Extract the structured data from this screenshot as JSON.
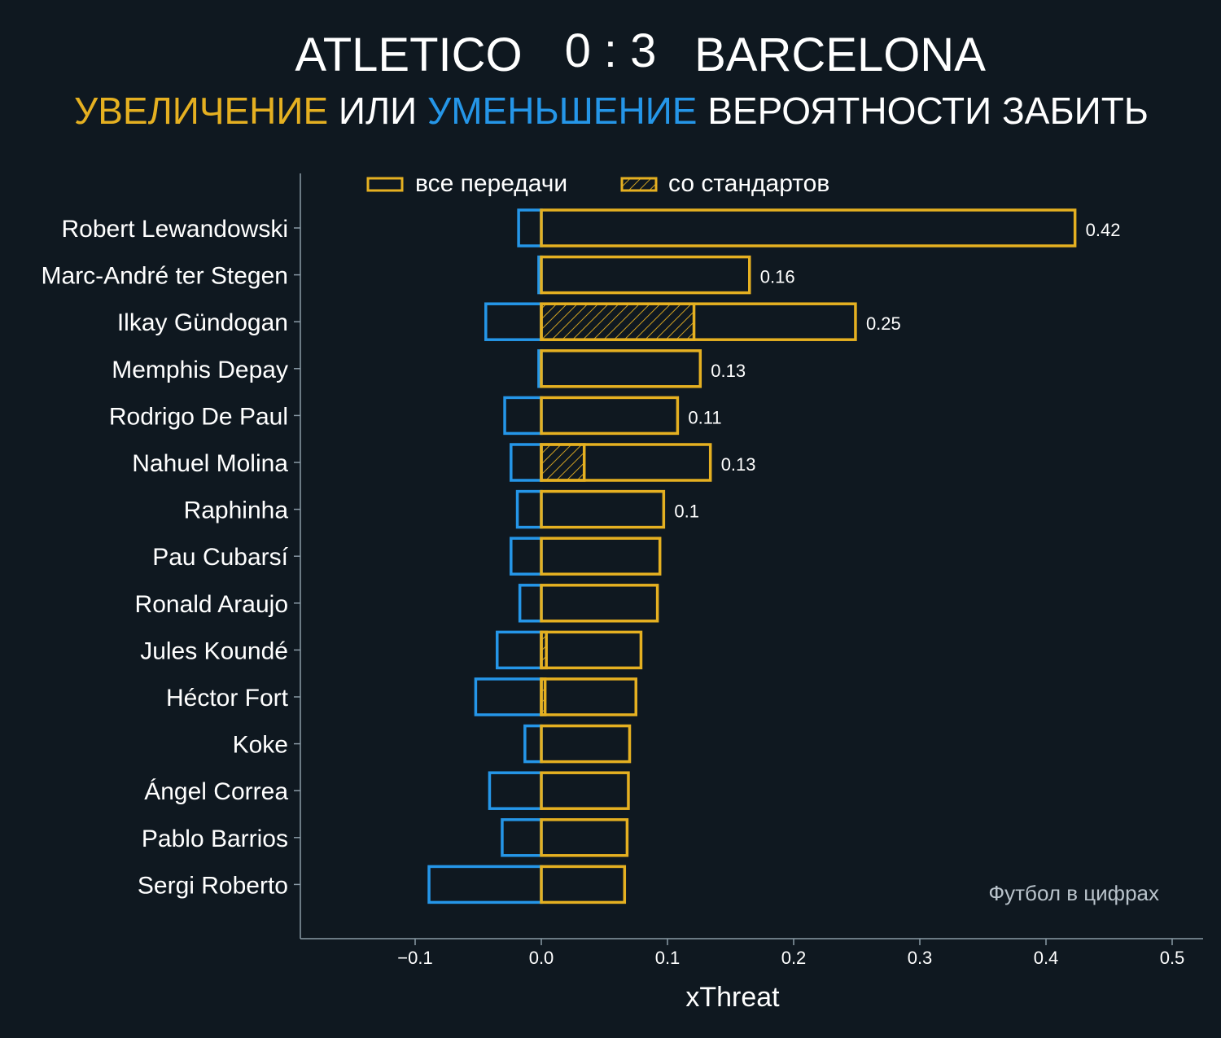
{
  "header": {
    "team_home": "ATLETICO",
    "score": "0 : 3",
    "team_away": "BARCELONA",
    "subtitle_increase": "УВЕЛИЧЕНИЕ",
    "subtitle_or": "ИЛИ",
    "subtitle_decrease": "УМЕНЬШЕНИЕ",
    "subtitle_rest": "ВЕРОЯТНОСТИ ЗАБИТЬ"
  },
  "colors": {
    "increase": "#e5b021",
    "decrease": "#2596e8",
    "background": "#0f1820"
  },
  "legend": {
    "all_passes": "все передачи",
    "set_pieces": "со стандартов"
  },
  "credit": "Футбол в цифрах",
  "chart_data": {
    "type": "bar",
    "orientation": "horizontal",
    "xlabel": "xThreat",
    "xlim": [
      -0.19,
      0.52
    ],
    "xticks": [
      -0.1,
      0.0,
      0.1,
      0.2,
      0.3,
      0.4,
      0.5
    ],
    "xtick_labels": [
      "−0.1",
      "0.0",
      "0.1",
      "0.2",
      "0.3",
      "0.4",
      "0.5"
    ],
    "categories": [
      "Robert Lewandowski",
      "Marc-André ter Stegen",
      "Ilkay Gündogan",
      "Memphis Depay",
      "Rodrigo De Paul",
      "Nahuel Molina",
      "Raphinha",
      "Pau Cubarsí",
      "Ronald Araujo",
      "Jules Koundé",
      "Héctor Fort",
      "Koke",
      "Ángel Correa",
      "Pablo Barrios",
      "Sergi Roberto"
    ],
    "series": [
      {
        "name": "increase (все передачи)",
        "values": [
          0.423,
          0.165,
          0.249,
          0.126,
          0.108,
          0.134,
          0.097,
          0.094,
          0.092,
          0.079,
          0.075,
          0.07,
          0.069,
          0.068,
          0.066
        ]
      },
      {
        "name": "increase (со стандартов)",
        "values": [
          0,
          0,
          0.121,
          0,
          0,
          0.034,
          0,
          0,
          0,
          0.004,
          0.003,
          0,
          0,
          0,
          0
        ]
      },
      {
        "name": "decrease",
        "values": [
          -0.018,
          -0.002,
          -0.044,
          -0.002,
          -0.029,
          -0.024,
          -0.019,
          -0.024,
          -0.017,
          -0.035,
          -0.052,
          -0.013,
          -0.041,
          -0.031,
          -0.089
        ]
      }
    ],
    "value_labels": [
      "0.42",
      "0.16",
      "0.25",
      "0.13",
      "0.11",
      "0.13",
      "0.1",
      "",
      "",
      "",
      "",
      "",
      "",
      "",
      ""
    ]
  }
}
